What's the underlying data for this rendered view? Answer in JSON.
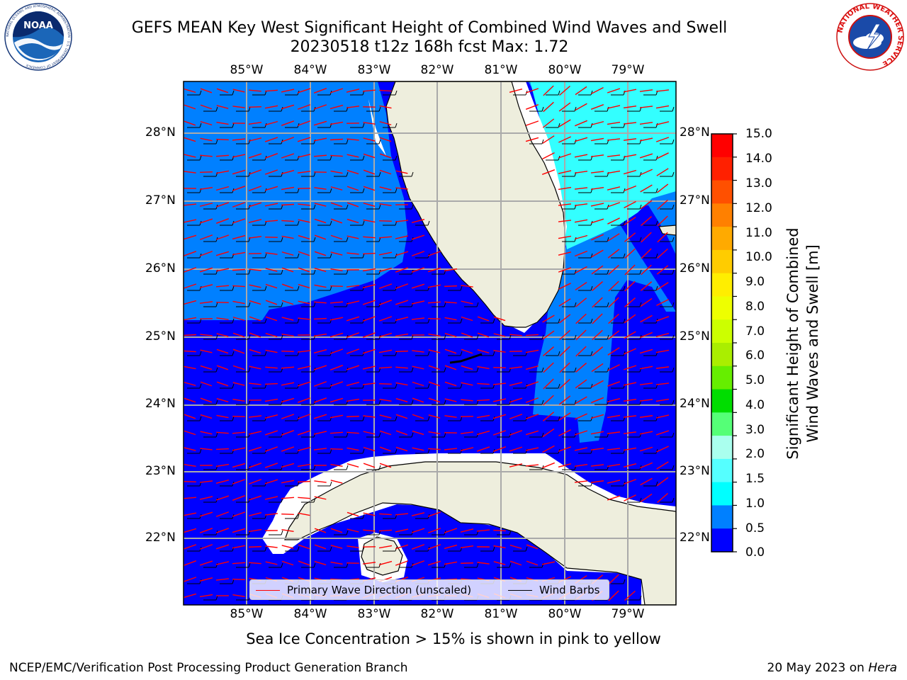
{
  "title": {
    "line1": "GEFS MEAN Key West Significant Height of Combined Wind Waves and Swell",
    "line2": "20230518 t12z 168h fcst   Max: 1.72"
  },
  "logos": {
    "left": {
      "icon": "noaa-logo",
      "text": "NOAA",
      "ring_text": "NATIONAL OCEANIC AND ATMOSPHERIC ADMINISTRATION · U.S. DEPARTMENT OF COMMERCE"
    },
    "right": {
      "icon": "nws-logo",
      "ring_text": "NATIONAL WEATHER SERVICE"
    }
  },
  "map": {
    "lon_labels": [
      "85°W",
      "84°W",
      "83°W",
      "82°W",
      "81°W",
      "80°W",
      "79°W"
    ],
    "lat_labels": [
      "28°N",
      "27°N",
      "26°N",
      "25°N",
      "24°N",
      "23°N",
      "22°N"
    ],
    "colors": {
      "ocean_0_05": "#0000ff",
      "ocean_05_10": "#0080ff",
      "ocean_15_20": "#33ffff",
      "land": "#eeeedd",
      "grid": "#aaaaaa",
      "wave_arrow": "#ff0000",
      "wind_barb": "#000000"
    }
  },
  "legend": {
    "wave_direction": "Primary Wave Direction (unscaled)",
    "wind_barbs": "Wind Barbs",
    "wave_color": "#ff0000",
    "barb_color": "#000000"
  },
  "colorbar": {
    "label_line1": "Significant Height of Combined",
    "label_line2": "Wind Waves and Swell [m]",
    "ticks": [
      "15.0",
      "14.0",
      "13.0",
      "12.0",
      "11.0",
      "10.0",
      "9.0",
      "8.0",
      "7.0",
      "6.0",
      "5.0",
      "4.0",
      "3.0",
      "2.0",
      "1.5",
      "1.0",
      "0.5",
      "0.0"
    ],
    "colors_top_to_bottom": [
      "#ff0000",
      "#ff2000",
      "#ff5000",
      "#ff8000",
      "#ffaa00",
      "#ffcc00",
      "#ffee00",
      "#eeff00",
      "#ccff00",
      "#aaee00",
      "#66ee00",
      "#00dd00",
      "#55ff77",
      "#aaffee",
      "#55ffff",
      "#00ffff",
      "#0080ff",
      "#0000ff"
    ]
  },
  "footnote": "Sea Ice Concentration > 15% is shown in pink to yellow",
  "credits": {
    "left": "NCEP/EMC/Verification Post Processing Product Generation Branch",
    "right_prefix": "20 May 2023 on ",
    "right_host": "Hera"
  }
}
